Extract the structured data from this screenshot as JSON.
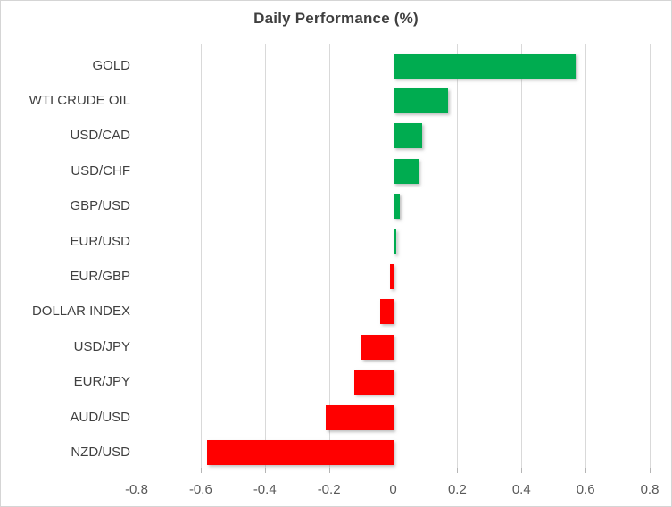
{
  "chart_data": {
    "type": "bar",
    "orientation": "horizontal",
    "title": "Daily Performance (%)",
    "categories": [
      "GOLD",
      "WTI CRUDE OIL",
      "USD/CAD",
      "USD/CHF",
      "GBP/USD",
      "EUR/USD",
      "EUR/GBP",
      "DOLLAR INDEX",
      "USD/JPY",
      "EUR/JPY",
      "AUD/USD",
      "NZD/USD"
    ],
    "values": [
      0.57,
      0.17,
      0.09,
      0.08,
      0.02,
      0.01,
      -0.01,
      -0.04,
      -0.1,
      -0.12,
      -0.21,
      -0.58
    ],
    "xlim": [
      -0.8,
      0.8
    ],
    "xticks": [
      -0.8,
      -0.6,
      -0.4,
      -0.2,
      0,
      0.2,
      0.4,
      0.6,
      0.8
    ],
    "xtick_labels": [
      "-0.8",
      "-0.6",
      "-0.4",
      "-0.2",
      "0",
      "0.2",
      "0.4",
      "0.6",
      "0.8"
    ],
    "grid": true,
    "legend": "none",
    "colors": {
      "positive": "#00ac50",
      "negative": "#ff0000"
    }
  }
}
